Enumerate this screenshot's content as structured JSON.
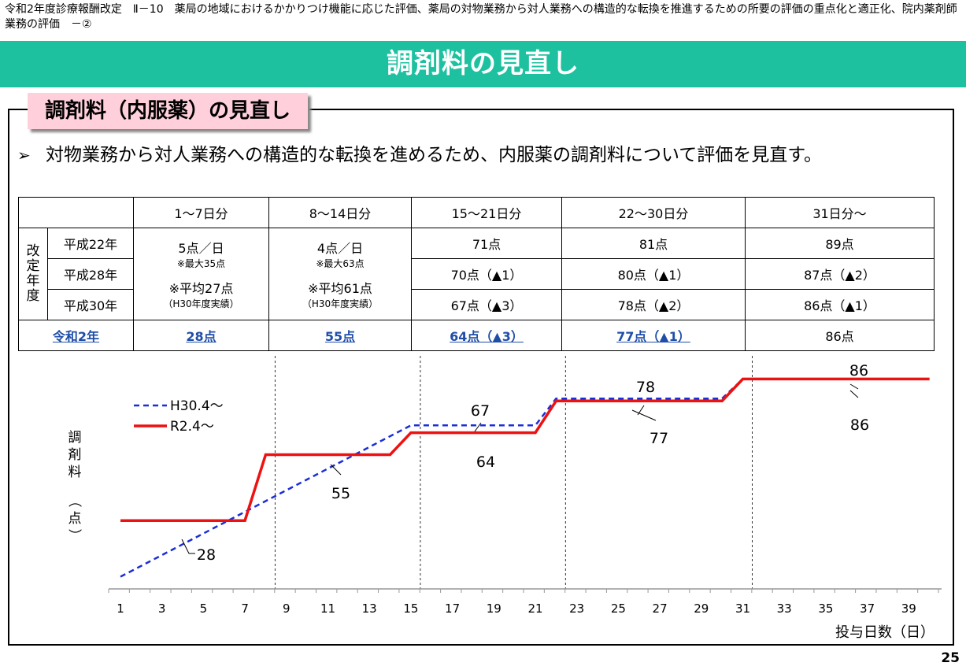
{
  "header": {
    "text": "令和2年度診療報酬改定　Ⅱ－10　薬局の地域におけるかかりつけ機能に応じた評価、薬局の対物業務から対人業務への構造的な転換を推進するための所要の評価の重点化と適正化、院内薬剤師業務の評価　－②"
  },
  "title": "調剤料の見直し",
  "subtitle": "調剤料（内服薬）の見直し",
  "bullet": {
    "mark": "➢",
    "text": "対物業務から対人業務への構造的な転換を進めるため、内服薬の調剤料について評価を見直す。"
  },
  "table": {
    "columns": [
      "1～7日分",
      "8～14日分",
      "15～21日分",
      "22～30日分",
      "31日分～"
    ],
    "row_group_label": [
      "改",
      "定",
      "年",
      "度"
    ],
    "rows": {
      "h22": {
        "label": "平成22年",
        "c3": "71点",
        "c4": "81点",
        "c5": "89点"
      },
      "h28": {
        "label": "平成28年",
        "c3": "70点（▲1）",
        "c4": "80点（▲1）",
        "c5": "87点（▲2）"
      },
      "h30": {
        "label": "平成30年",
        "c3": "67点（▲3）",
        "c4": "78点（▲2）",
        "c5": "86点（▲1）"
      },
      "r2": {
        "label": "令和2年",
        "c1": "28点",
        "c2": "55点",
        "c3": "64点（▲3）",
        "c4": "77点（▲1）",
        "c5": "86点"
      }
    },
    "merged": {
      "c1_main": "5点／日",
      "c1_sub": "※最大35点",
      "c1_avg": "※平均27点",
      "c1_avg_note": "（H30年度実績）",
      "c2_main": "4点／日",
      "c2_sub": "※最大63点",
      "c2_avg": "※平均61点",
      "c2_avg_note": "（H30年度実績）"
    }
  },
  "chart_data": {
    "type": "line",
    "xlabel": "投与日数（日）",
    "ylabel": "調剤料（点）",
    "x_ticks": [
      1,
      3,
      5,
      7,
      9,
      11,
      13,
      15,
      17,
      19,
      21,
      23,
      25,
      27,
      29,
      31,
      33,
      35,
      37,
      39
    ],
    "xlim": [
      0,
      41
    ],
    "ylim": [
      0,
      100
    ],
    "segment_dividers": [
      8,
      15,
      22,
      31
    ],
    "series": [
      {
        "name": "H30.4～",
        "color": "#1a2fd6",
        "dash": true,
        "points": [
          [
            1,
            5
          ],
          [
            15,
            67
          ],
          [
            21,
            67
          ],
          [
            22,
            78
          ],
          [
            30,
            78
          ],
          [
            31,
            86
          ],
          [
            40,
            86
          ]
        ]
      },
      {
        "name": "R2.4～",
        "color": "#ee1111",
        "dash": false,
        "points": [
          [
            1,
            28
          ],
          [
            7,
            28
          ],
          [
            8,
            55
          ],
          [
            14,
            55
          ],
          [
            15,
            64
          ],
          [
            21,
            64
          ],
          [
            22,
            77
          ],
          [
            30,
            77
          ],
          [
            31,
            86
          ],
          [
            40,
            86
          ]
        ]
      }
    ],
    "annotations": [
      {
        "text": "28"
      },
      {
        "text": "55"
      },
      {
        "text": "64"
      },
      {
        "text": "67"
      },
      {
        "text": "77"
      },
      {
        "text": "78"
      },
      {
        "text": "86"
      },
      {
        "text": "86"
      }
    ]
  },
  "page_number": "25"
}
